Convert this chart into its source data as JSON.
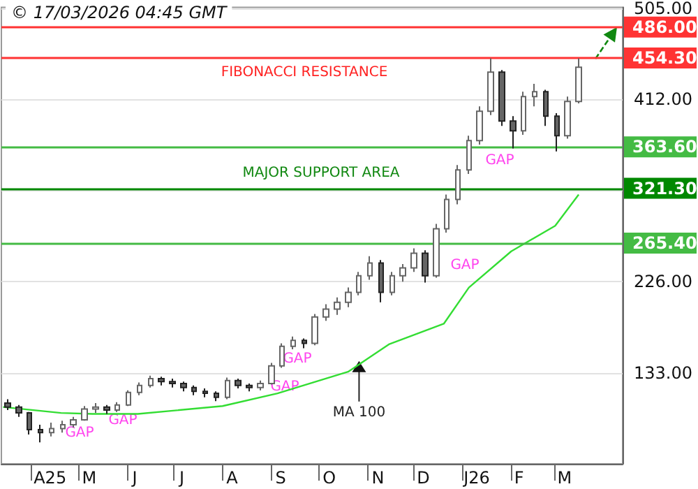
{
  "chart_data": {
    "type": "candlestick",
    "title": "© 17/03/2026 04:45 GMT",
    "x": [
      "2025-03-17",
      "2025-03-24",
      "2025-03-31",
      "2025-04-07",
      "2025-04-14",
      "2025-04-21",
      "2025-04-28",
      "2025-05-05",
      "2025-05-12",
      "2025-05-19",
      "2025-05-26",
      "2025-06-02",
      "2025-06-09",
      "2025-06-16",
      "2025-06-23",
      "2025-06-30",
      "2025-07-07",
      "2025-07-14",
      "2025-07-21",
      "2025-07-28",
      "2025-08-04",
      "2025-08-11",
      "2025-08-18",
      "2025-08-25",
      "2025-09-01",
      "2025-09-08",
      "2025-09-15",
      "2025-09-22",
      "2025-09-29",
      "2025-10-06",
      "2025-10-13",
      "2025-10-20",
      "2025-10-27",
      "2025-11-03",
      "2025-11-10",
      "2025-11-17",
      "2025-11-24",
      "2025-12-01",
      "2025-12-08",
      "2025-12-15",
      "2025-12-22",
      "2025-12-29",
      "2026-01-05",
      "2026-01-12",
      "2026-01-19",
      "2026-01-26",
      "2026-02-02",
      "2026-02-09",
      "2026-02-16",
      "2026-02-23",
      "2026-03-02",
      "2026-03-09",
      "2026-03-16"
    ],
    "ohlc": [
      [
        102,
        106,
        95,
        98
      ],
      [
        98,
        100,
        88,
        92
      ],
      [
        92,
        93,
        70,
        75
      ],
      [
        75,
        80,
        62,
        72
      ],
      [
        72,
        82,
        68,
        76
      ],
      [
        76,
        84,
        72,
        80
      ],
      [
        80,
        88,
        77,
        85
      ],
      [
        85,
        99,
        84,
        96
      ],
      [
        96,
        102,
        92,
        98
      ],
      [
        98,
        100,
        91,
        95
      ],
      [
        95,
        103,
        93,
        100
      ],
      [
        100,
        115,
        99,
        113
      ],
      [
        113,
        123,
        110,
        120
      ],
      [
        120,
        130,
        118,
        127
      ],
      [
        127,
        129,
        120,
        124
      ],
      [
        124,
        127,
        118,
        122
      ],
      [
        122,
        124,
        114,
        118
      ],
      [
        118,
        120,
        110,
        114
      ],
      [
        114,
        117,
        108,
        112
      ],
      [
        112,
        114,
        104,
        108
      ],
      [
        108,
        128,
        106,
        125
      ],
      [
        125,
        127,
        117,
        120
      ],
      [
        120,
        122,
        114,
        118
      ],
      [
        118,
        125,
        115,
        122
      ],
      [
        122,
        143,
        121,
        140
      ],
      [
        140,
        163,
        138,
        160
      ],
      [
        160,
        170,
        157,
        166
      ],
      [
        166,
        168,
        158,
        163
      ],
      [
        163,
        193,
        161,
        190
      ],
      [
        190,
        203,
        186,
        198
      ],
      [
        198,
        210,
        192,
        205
      ],
      [
        205,
        220,
        200,
        215
      ],
      [
        215,
        236,
        212,
        232
      ],
      [
        232,
        252,
        228,
        245
      ],
      [
        245,
        248,
        205,
        215
      ],
      [
        215,
        236,
        212,
        232
      ],
      [
        232,
        244,
        226,
        240
      ],
      [
        240,
        260,
        236,
        255
      ],
      [
        255,
        258,
        225,
        232
      ],
      [
        232,
        285,
        230,
        280
      ],
      [
        280,
        315,
        276,
        310
      ],
      [
        310,
        345,
        305,
        340
      ],
      [
        340,
        375,
        336,
        370
      ],
      [
        370,
        405,
        366,
        400
      ],
      [
        400,
        454,
        396,
        440
      ],
      [
        440,
        442,
        385,
        390
      ],
      [
        390,
        395,
        362,
        380
      ],
      [
        380,
        420,
        376,
        415
      ],
      [
        415,
        428,
        405,
        420
      ],
      [
        420,
        422,
        385,
        395
      ],
      [
        395,
        398,
        359,
        375
      ],
      [
        375,
        415,
        372,
        410
      ],
      [
        410,
        454,
        408,
        445
      ]
    ],
    "color": "#666666",
    "series": [
      {
        "type": "line",
        "color": "#33dd33",
        "x": [
          "2025-03-14",
          "2025-04-20",
          "2025-05-10",
          "2025-06-08",
          "2025-08-01",
          "2025-09-05",
          "2025-10-20",
          "2025-11-15",
          "2025-12-20",
          "2026-01-05",
          "2026-02-01",
          "2026-03-01",
          "2026-03-16"
        ],
        "values": [
          98,
          92,
          91,
          91,
          99,
          112,
          134,
          162,
          183,
          220,
          257,
          283,
          315
        ]
      }
    ],
    "xlim": [
      "2025-03-13",
      "2026-04-13"
    ],
    "xticks": [
      {
        "value": "2025-04-01",
        "label": null
      },
      {
        "value": "2025-04-13",
        "label": "A25"
      },
      {
        "value": "2025-05-01",
        "label": null
      },
      {
        "value": "2025-05-08",
        "label": "M"
      },
      {
        "value": "2025-06-01",
        "label": null
      },
      {
        "value": "2025-06-06",
        "label": "J"
      },
      {
        "value": "2025-07-01",
        "label": null
      },
      {
        "value": "2025-07-06",
        "label": "J"
      },
      {
        "value": "2025-08-01",
        "label": null
      },
      {
        "value": "2025-08-07",
        "label": "A"
      },
      {
        "value": "2025-09-01",
        "label": null
      },
      {
        "value": "2025-09-07",
        "label": "S"
      },
      {
        "value": "2025-10-01",
        "label": null
      },
      {
        "value": "2025-10-08",
        "label": "O"
      },
      {
        "value": "2025-11-01",
        "label": null
      },
      {
        "value": "2025-11-08",
        "label": "N"
      },
      {
        "value": "2025-12-01",
        "label": null
      },
      {
        "value": "2025-12-07",
        "label": "D"
      },
      {
        "value": "2026-01-01",
        "label": null
      },
      {
        "value": "2026-01-10",
        "label": "J26"
      },
      {
        "value": "2026-02-01",
        "label": null
      },
      {
        "value": "2026-02-06",
        "label": "F"
      },
      {
        "value": "2026-03-01",
        "label": null
      },
      {
        "value": "2026-03-07",
        "label": "M"
      }
    ],
    "ylim": [
      40,
      506
    ],
    "yticks": [
      {
        "value": 133,
        "label": "133.00"
      },
      {
        "value": 226,
        "label": "226.00"
      },
      {
        "value": 319,
        "label": null
      },
      {
        "value": 412,
        "label": "412.00"
      },
      {
        "value": 505,
        "label": "505.00"
      }
    ],
    "grid": "y",
    "ref_lines": [
      {
        "axis": "y",
        "value": 486,
        "label": "486.00",
        "color": "#ff3333"
      },
      {
        "axis": "y",
        "value": 454.3,
        "label": "454.30",
        "color": "#ff3333"
      },
      {
        "axis": "y",
        "value": 363.6,
        "label": "363.60",
        "color": "#44bb44"
      },
      {
        "axis": "y",
        "value": 321.3,
        "label": "321.30",
        "color": "#008800"
      },
      {
        "axis": "y",
        "value": 265.4,
        "label": "265.40",
        "color": "#44bb44"
      }
    ],
    "annotations": [
      "FIBONACCI RESISTANCE",
      "MAJOR SUPPORT AREA",
      {
        "text": "MA 100",
        "x": "2025-10-27",
        "y": 145
      },
      "GAP",
      "GAP",
      "GAP",
      "GAP",
      "GAP",
      "GAP"
    ]
  }
}
